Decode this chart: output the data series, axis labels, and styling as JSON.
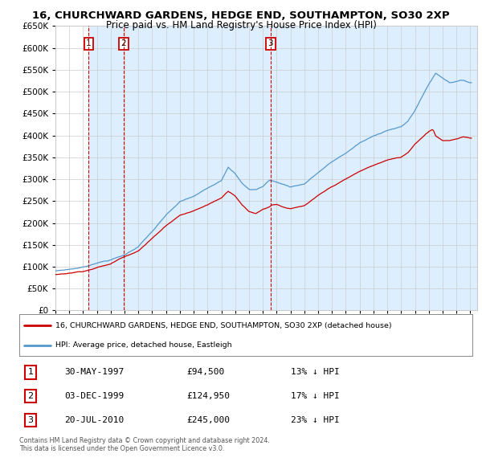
{
  "title": "16, CHURCHWARD GARDENS, HEDGE END, SOUTHAMPTON, SO30 2XP",
  "subtitle": "Price paid vs. HM Land Registry's House Price Index (HPI)",
  "ytick_values": [
    0,
    50000,
    100000,
    150000,
    200000,
    250000,
    300000,
    350000,
    400000,
    450000,
    500000,
    550000,
    600000,
    650000
  ],
  "sale_dates": [
    1997.41,
    1999.92,
    2010.55
  ],
  "sale_prices": [
    94500,
    124950,
    245000
  ],
  "sale_labels": [
    "1",
    "2",
    "3"
  ],
  "hpi_color": "#5599cc",
  "sale_color": "#cc0000",
  "shade_color": "#ddeeff",
  "legend_label_sale": "16, CHURCHWARD GARDENS, HEDGE END, SOUTHAMPTON, SO30 2XP (detached house)",
  "legend_label_hpi": "HPI: Average price, detached house, Eastleigh",
  "table_rows": [
    {
      "num": "1",
      "date": "30-MAY-1997",
      "price": "£94,500",
      "hpi": "13% ↓ HPI"
    },
    {
      "num": "2",
      "date": "03-DEC-1999",
      "price": "£124,950",
      "hpi": "17% ↓ HPI"
    },
    {
      "num": "3",
      "date": "20-JUL-2010",
      "price": "£245,000",
      "hpi": "23% ↓ HPI"
    }
  ],
  "footnote": "Contains HM Land Registry data © Crown copyright and database right 2024.\nThis data is licensed under the Open Government Licence v3.0.",
  "background_color": "#ffffff",
  "grid_color": "#cccccc",
  "xmin": 1995.0,
  "xmax": 2025.5,
  "ymin": 0,
  "ymax": 650000
}
